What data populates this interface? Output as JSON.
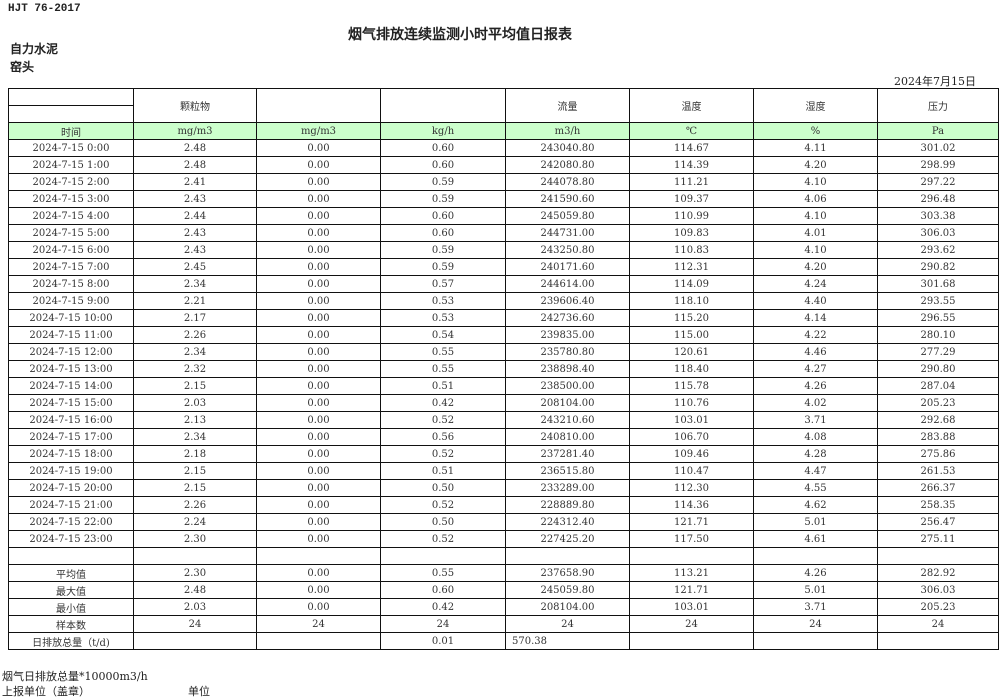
{
  "standard": "HJT  76-2017",
  "title": "烟气排放连续监测小时平均值日报表",
  "company": "自力水泥",
  "unit_name": "窑头",
  "date": "2024年7月15日",
  "header": {
    "cols": [
      "",
      "颗粒物",
      "",
      "",
      "流量",
      "温度",
      "湿度",
      "压力"
    ]
  },
  "units": [
    "时间",
    "mg/m3",
    "mg/m3",
    "kg/h",
    "m3/h",
    "℃",
    "%",
    "Pa"
  ],
  "rows": [
    [
      "2024-7-15 0:00",
      "2.48",
      "0.00",
      "0.60",
      "243040.80",
      "114.67",
      "4.11",
      "301.02"
    ],
    [
      "2024-7-15 1:00",
      "2.48",
      "0.00",
      "0.60",
      "242080.80",
      "114.39",
      "4.20",
      "298.99"
    ],
    [
      "2024-7-15 2:00",
      "2.41",
      "0.00",
      "0.59",
      "244078.80",
      "111.21",
      "4.10",
      "297.22"
    ],
    [
      "2024-7-15 3:00",
      "2.43",
      "0.00",
      "0.59",
      "241590.60",
      "109.37",
      "4.06",
      "296.48"
    ],
    [
      "2024-7-15 4:00",
      "2.44",
      "0.00",
      "0.60",
      "245059.80",
      "110.99",
      "4.10",
      "303.38"
    ],
    [
      "2024-7-15 5:00",
      "2.43",
      "0.00",
      "0.60",
      "244731.00",
      "109.83",
      "4.01",
      "306.03"
    ],
    [
      "2024-7-15 6:00",
      "2.43",
      "0.00",
      "0.59",
      "243250.80",
      "110.83",
      "4.10",
      "293.62"
    ],
    [
      "2024-7-15 7:00",
      "2.45",
      "0.00",
      "0.59",
      "240171.60",
      "112.31",
      "4.20",
      "290.82"
    ],
    [
      "2024-7-15 8:00",
      "2.34",
      "0.00",
      "0.57",
      "244614.00",
      "114.09",
      "4.24",
      "301.68"
    ],
    [
      "2024-7-15 9:00",
      "2.21",
      "0.00",
      "0.53",
      "239606.40",
      "118.10",
      "4.40",
      "293.55"
    ],
    [
      "2024-7-15 10:00",
      "2.17",
      "0.00",
      "0.53",
      "242736.60",
      "115.20",
      "4.14",
      "296.55"
    ],
    [
      "2024-7-15 11:00",
      "2.26",
      "0.00",
      "0.54",
      "239835.00",
      "115.00",
      "4.22",
      "280.10"
    ],
    [
      "2024-7-15 12:00",
      "2.34",
      "0.00",
      "0.55",
      "235780.80",
      "120.61",
      "4.46",
      "277.29"
    ],
    [
      "2024-7-15 13:00",
      "2.32",
      "0.00",
      "0.55",
      "238898.40",
      "118.40",
      "4.27",
      "290.80"
    ],
    [
      "2024-7-15 14:00",
      "2.15",
      "0.00",
      "0.51",
      "238500.00",
      "115.78",
      "4.26",
      "287.04"
    ],
    [
      "2024-7-15 15:00",
      "2.03",
      "0.00",
      "0.42",
      "208104.00",
      "110.76",
      "4.02",
      "205.23"
    ],
    [
      "2024-7-15 16:00",
      "2.13",
      "0.00",
      "0.52",
      "243210.60",
      "103.01",
      "3.71",
      "292.68"
    ],
    [
      "2024-7-15 17:00",
      "2.34",
      "0.00",
      "0.56",
      "240810.00",
      "106.70",
      "4.08",
      "283.88"
    ],
    [
      "2024-7-15 18:00",
      "2.18",
      "0.00",
      "0.52",
      "237281.40",
      "109.46",
      "4.28",
      "275.86"
    ],
    [
      "2024-7-15 19:00",
      "2.15",
      "0.00",
      "0.51",
      "236515.80",
      "110.47",
      "4.47",
      "261.53"
    ],
    [
      "2024-7-15 20:00",
      "2.15",
      "0.00",
      "0.50",
      "233289.00",
      "112.30",
      "4.55",
      "266.37"
    ],
    [
      "2024-7-15 21:00",
      "2.26",
      "0.00",
      "0.52",
      "228889.80",
      "114.36",
      "4.62",
      "258.35"
    ],
    [
      "2024-7-15 22:00",
      "2.24",
      "0.00",
      "0.50",
      "224312.40",
      "121.71",
      "5.01",
      "256.47"
    ],
    [
      "2024-7-15 23:00",
      "2.30",
      "0.00",
      "0.52",
      "227425.20",
      "117.50",
      "4.61",
      "275.11"
    ]
  ],
  "stats": [
    [
      "平均值",
      "2.30",
      "0.00",
      "0.55",
      "237658.90",
      "113.21",
      "4.26",
      "282.92"
    ],
    [
      "最大值",
      "2.48",
      "0.00",
      "0.60",
      "245059.80",
      "121.71",
      "5.01",
      "306.03"
    ],
    [
      "最小值",
      "2.03",
      "0.00",
      "0.42",
      "208104.00",
      "103.01",
      "3.71",
      "205.23"
    ],
    [
      "样本数",
      "24",
      "24",
      "24",
      "24",
      "24",
      "24",
      "24"
    ],
    [
      "日排放总量（t/d)",
      "",
      "",
      "0.01",
      "570.38",
      "",
      "",
      ""
    ]
  ],
  "footer": {
    "line1": "烟气日排放总量*10000m3/h",
    "line2": "上报单位（盖章）",
    "line2_value": "单位"
  }
}
